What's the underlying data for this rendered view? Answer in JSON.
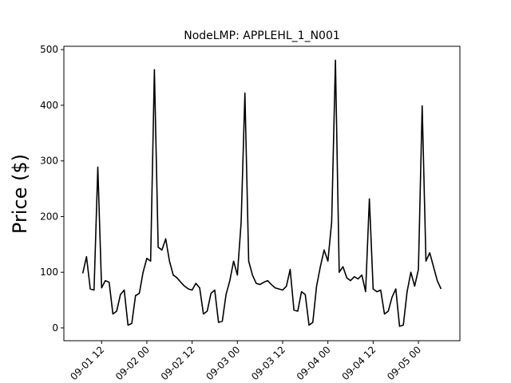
{
  "chart_data": {
    "type": "line",
    "title": "NodeLMP: APPLEHL_1_N001",
    "ylabel": "Price ($)",
    "x": [
      "09-01 07",
      "09-01 08",
      "09-01 09",
      "09-01 10",
      "09-01 11",
      "09-01 12",
      "09-01 13",
      "09-01 14",
      "09-01 15",
      "09-01 16",
      "09-01 17",
      "09-01 18",
      "09-01 19",
      "09-01 20",
      "09-01 21",
      "09-01 22",
      "09-01 23",
      "09-02 00",
      "09-02 01",
      "09-02 02",
      "09-02 03",
      "09-02 04",
      "09-02 05",
      "09-02 06",
      "09-02 07",
      "09-02 08",
      "09-02 09",
      "09-02 10",
      "09-02 11",
      "09-02 12",
      "09-02 13",
      "09-02 14",
      "09-02 15",
      "09-02 16",
      "09-02 17",
      "09-02 18",
      "09-02 19",
      "09-02 20",
      "09-02 21",
      "09-02 22",
      "09-02 23",
      "09-03 00",
      "09-03 01",
      "09-03 02",
      "09-03 03",
      "09-03 04",
      "09-03 05",
      "09-03 06",
      "09-03 07",
      "09-03 08",
      "09-03 09",
      "09-03 10",
      "09-03 11",
      "09-03 12",
      "09-03 13",
      "09-03 14",
      "09-03 15",
      "09-03 16",
      "09-03 17",
      "09-03 18",
      "09-03 19",
      "09-03 20",
      "09-03 21",
      "09-03 22",
      "09-03 23",
      "09-04 00",
      "09-04 01",
      "09-04 02",
      "09-04 03",
      "09-04 04",
      "09-04 05",
      "09-04 06",
      "09-04 07",
      "09-04 08",
      "09-04 09",
      "09-04 10",
      "09-04 11",
      "09-04 12",
      "09-04 13",
      "09-04 14",
      "09-04 15",
      "09-04 16",
      "09-04 17",
      "09-04 18",
      "09-04 19",
      "09-04 20",
      "09-04 21",
      "09-04 22",
      "09-04 23",
      "09-05 00",
      "09-05 01",
      "09-05 02",
      "09-05 03",
      "09-05 04",
      "09-05 05",
      "09-05 06"
    ],
    "values": [
      98,
      128,
      70,
      68,
      289,
      72,
      85,
      82,
      25,
      30,
      60,
      68,
      5,
      8,
      58,
      62,
      100,
      125,
      120,
      464,
      145,
      140,
      160,
      120,
      95,
      90,
      82,
      75,
      70,
      68,
      80,
      72,
      25,
      30,
      62,
      68,
      10,
      12,
      60,
      85,
      120,
      95,
      190,
      422,
      120,
      95,
      80,
      78,
      82,
      85,
      78,
      72,
      70,
      68,
      75,
      105,
      32,
      30,
      65,
      60,
      5,
      10,
      75,
      110,
      140,
      120,
      190,
      481,
      100,
      110,
      90,
      85,
      92,
      88,
      95,
      65,
      232,
      70,
      65,
      68,
      25,
      30,
      55,
      70,
      3,
      5,
      65,
      100,
      75,
      105,
      399,
      120,
      135,
      110,
      85,
      70
    ],
    "color": "#000000",
    "xlim": [
      "09-01 02",
      "09-05 11"
    ],
    "xticks": [
      "09-01 12",
      "09-02 00",
      "09-02 12",
      "09-03 00",
      "09-03 12",
      "09-04 00",
      "09-04 12",
      "09-05 00"
    ],
    "ylim": [
      -23,
      506
    ],
    "yticks": [
      0,
      100,
      200,
      300,
      400,
      500
    ]
  }
}
